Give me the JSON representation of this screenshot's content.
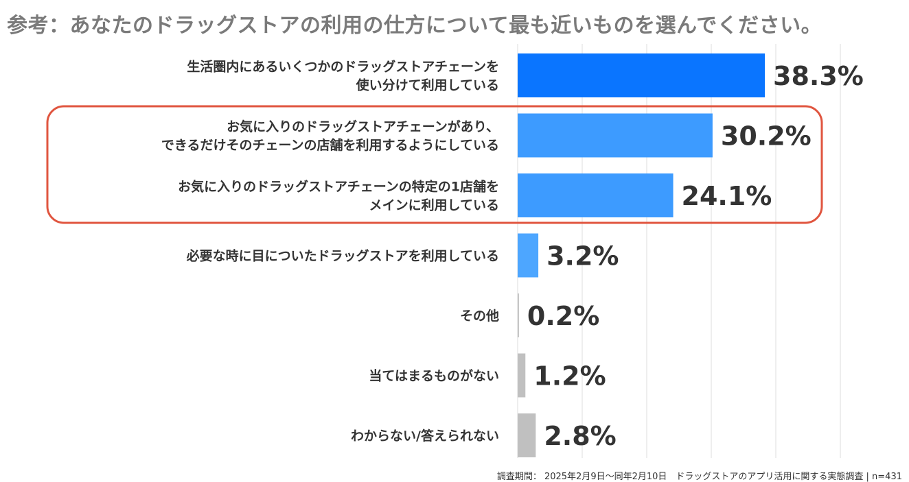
{
  "page": {
    "title": "参考：あなたのドラッグストアの利用の仕方について最も近いものを選んでください。",
    "footer": "調査期間： 2025年2月9日〜同年2月10日　ドラッグストアのアプリ活用に関する実態調査 | n=431"
  },
  "colors": {
    "highlight_blue": "#0a75ff",
    "light_blue": "#3d9bff",
    "gray": "#c0c0c0",
    "highlight_box": "#e0553f",
    "value_text": "#333333",
    "category_text": "#333333",
    "gridline": "#dedede"
  },
  "chart_data": {
    "type": "bar",
    "orientation": "horizontal",
    "title": "参考：あなたのドラッグストアの利用の仕方について最も近いものを選んでください。",
    "xlabel": "",
    "ylabel": "",
    "xlim": [
      0,
      50
    ],
    "grid": true,
    "categories": [
      [
        "生活圏内にあるいくつかのドラッグストアチェーンを",
        "使い分けて利用している"
      ],
      [
        "お気に入りのドラッグストアチェーンがあり、",
        "できるだけそのチェーンの店舗を利用するようにしている"
      ],
      [
        "お気に入りのドラッグストアチェーンの特定の1店舗を",
        "メインに利用している"
      ],
      [
        "必要な時に目についたドラッグストアを利用している"
      ],
      [
        "その他"
      ],
      [
        "当てはまるものがない"
      ],
      [
        "わからない/答えられない"
      ]
    ],
    "values": [
      38.3,
      30.2,
      24.1,
      3.2,
      0.2,
      1.2,
      2.8
    ],
    "value_labels": [
      "38.3%",
      "30.2%",
      "24.1%",
      "3.2%",
      "0.2%",
      "1.2%",
      "2.8%"
    ],
    "bar_colors": [
      "#0a75ff",
      "#3d9bff",
      "#3d9bff",
      "#4da6ff",
      "#c0c0c0",
      "#c0c0c0",
      "#c0c0c0"
    ],
    "highlighted_categories": [
      1,
      2
    ]
  }
}
